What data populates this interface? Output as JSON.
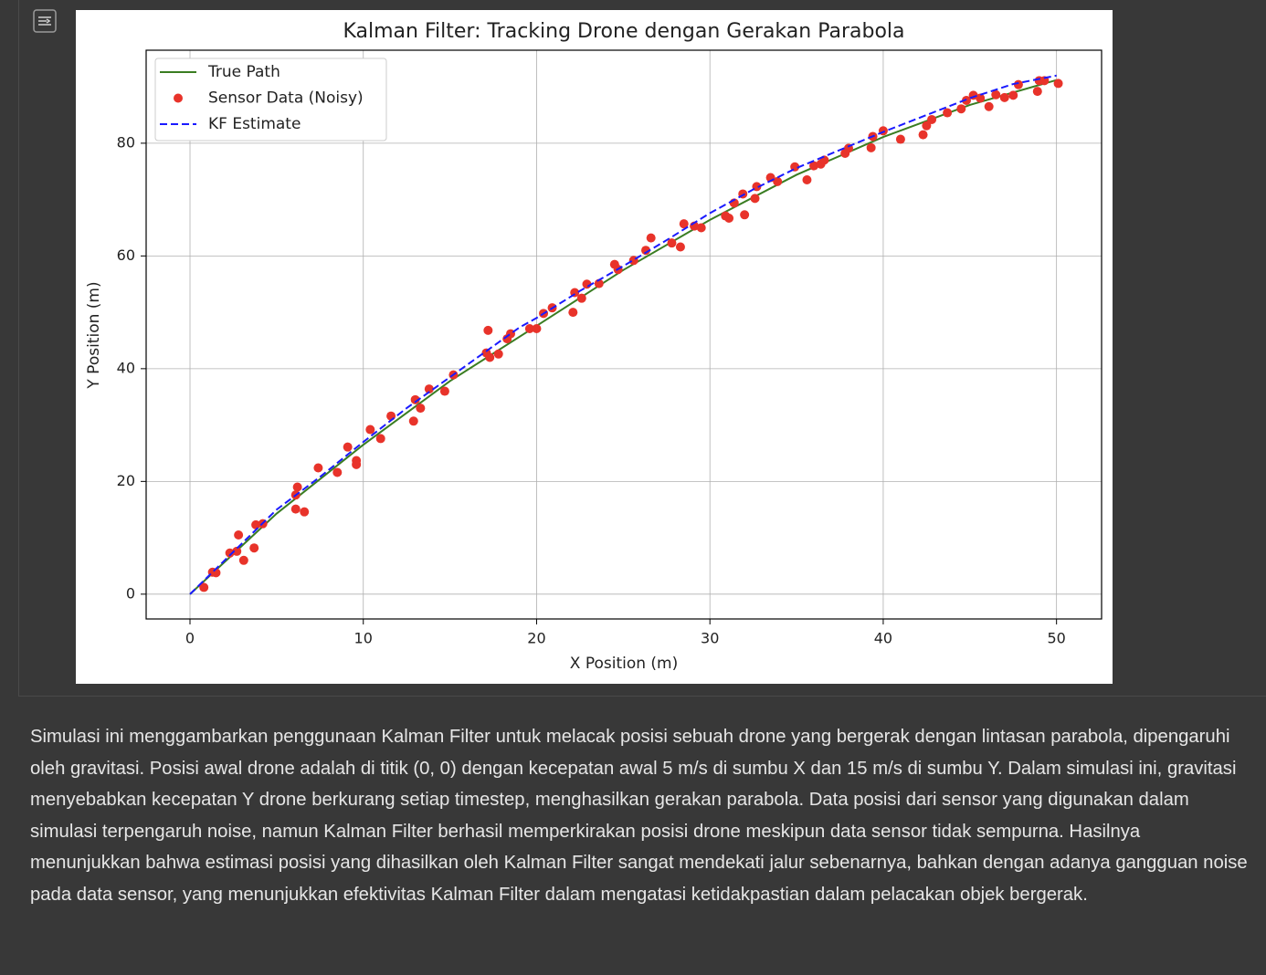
{
  "chart_data": {
    "type": "line",
    "title": "Kalman Filter: Tracking Drone dengan Gerakan Parabola",
    "x_label": "X Position (m)",
    "y_label": "Y Position (m)",
    "xlim": [
      -2.53,
      52.6
    ],
    "ylim": [
      -4.4,
      96.5
    ],
    "xticks": [
      0,
      10,
      20,
      30,
      40,
      50
    ],
    "yticks": [
      0,
      20,
      40,
      60,
      80
    ],
    "grid": true,
    "legend": "upper left",
    "series": [
      {
        "name": "True Path",
        "type": "line",
        "color": "#3a7d22",
        "x": [
          0,
          5,
          10,
          15,
          20,
          25,
          30,
          35,
          40,
          45,
          50
        ],
        "values": [
          0,
          14.3,
          26.5,
          37.8,
          47.6,
          57.5,
          66.4,
          74.4,
          81.1,
          86.8,
          91.2
        ]
      },
      {
        "name": "Sensor Data (Noisy)",
        "type": "scatter",
        "color": "#e8332a",
        "x": [
          0.8,
          1.3,
          1.5,
          2.3,
          2.7,
          2.8,
          3.1,
          3.7,
          3.8,
          4.2,
          6.1,
          6.1,
          6.2,
          6.6,
          7.4,
          8.5,
          9.1,
          9.6,
          9.6,
          10.4,
          11,
          11.6,
          12.9,
          13,
          13.3,
          13.8,
          14.7,
          15.2,
          17.1,
          17.2,
          17.3,
          17.8,
          18.3,
          18.5,
          19.6,
          20,
          20.4,
          20.9,
          22.1,
          22.2,
          22.6,
          22.9,
          23.6,
          24.5,
          24.7,
          25.6,
          26.3,
          26.6,
          27.8,
          28.3,
          28.5,
          29.1,
          29.5,
          30.9,
          31.1,
          31.4,
          31.9,
          32,
          32.6,
          32.7,
          33.5,
          33.9,
          34.9,
          35.6,
          36,
          36.4,
          36.6,
          37.8,
          38,
          39.3,
          39.4,
          40,
          41,
          42.3,
          42.5,
          42.8,
          43.7,
          44.5,
          44.8,
          45.2,
          45.6,
          46.1,
          46.5,
          47,
          47.5,
          47.8,
          48.9,
          49,
          49.3,
          50.1
        ],
        "values": [
          1.2,
          3.9,
          3.8,
          7.3,
          7.6,
          10.5,
          6,
          8.2,
          12.3,
          12.5,
          15.1,
          17.6,
          19,
          14.6,
          22.4,
          21.6,
          26.1,
          23,
          23.7,
          29.2,
          27.6,
          31.6,
          30.7,
          34.5,
          33,
          36.4,
          36,
          38.9,
          42.8,
          46.8,
          42,
          42.6,
          45.3,
          46.2,
          47.1,
          47.1,
          49.8,
          50.8,
          50,
          53.5,
          52.5,
          55,
          55.1,
          58.5,
          57.6,
          59.2,
          61,
          63.2,
          62.3,
          61.6,
          65.7,
          65.3,
          65,
          67.1,
          66.7,
          69.4,
          71,
          67.3,
          70.2,
          72.3,
          73.9,
          73.2,
          75.8,
          73.5,
          76,
          76.3,
          77,
          78.2,
          79.1,
          79.2,
          81.2,
          82.2,
          80.7,
          81.5,
          83.1,
          84.2,
          85.4,
          86.1,
          87.6,
          88.5,
          88,
          86.5,
          88.6,
          88.1,
          88.5,
          90.4,
          89.2,
          91.1,
          91.1,
          90.6
        ]
      },
      {
        "name": "KF Estimate",
        "type": "line",
        "style": "dashed",
        "color": "#1a1aff",
        "x": [
          0,
          2.5,
          5,
          7.5,
          10,
          12.5,
          15,
          17.5,
          19,
          20,
          22.5,
          25,
          27.5,
          30,
          32.5,
          35,
          37.5,
          40,
          42.5,
          45,
          47.5,
          50
        ],
        "values": [
          0,
          7.5,
          15,
          20.8,
          27,
          33,
          38.5,
          44,
          47.3,
          49,
          53.8,
          58.2,
          62.8,
          67.6,
          71.8,
          75.6,
          78.8,
          82,
          85,
          88,
          90.5,
          92
        ]
      }
    ]
  },
  "description": "Simulasi ini menggambarkan penggunaan Kalman Filter untuk melacak posisi sebuah drone yang bergerak dengan lintasan parabola, dipengaruhi oleh gravitasi. Posisi awal drone adalah di titik (0, 0) dengan kecepatan awal 5 m/s di sumbu X dan 15 m/s di sumbu Y. Dalam simulasi ini, gravitasi menyebabkan kecepatan Y drone berkurang setiap timestep, menghasilkan gerakan parabola. Data posisi dari sensor yang digunakan dalam simulasi terpengaruh noise, namun Kalman Filter berhasil memperkirakan posisi drone meskipun data sensor tidak sempurna. Hasilnya menunjukkan bahwa estimasi posisi yang dihasilkan oleh Kalman Filter sangat mendekati jalur sebenarnya, bahkan dengan adanya gangguan noise pada data sensor, yang menunjukkan efektivitas Kalman Filter dalam mengatasi ketidakpastian dalam pelacakan objek bergerak."
}
